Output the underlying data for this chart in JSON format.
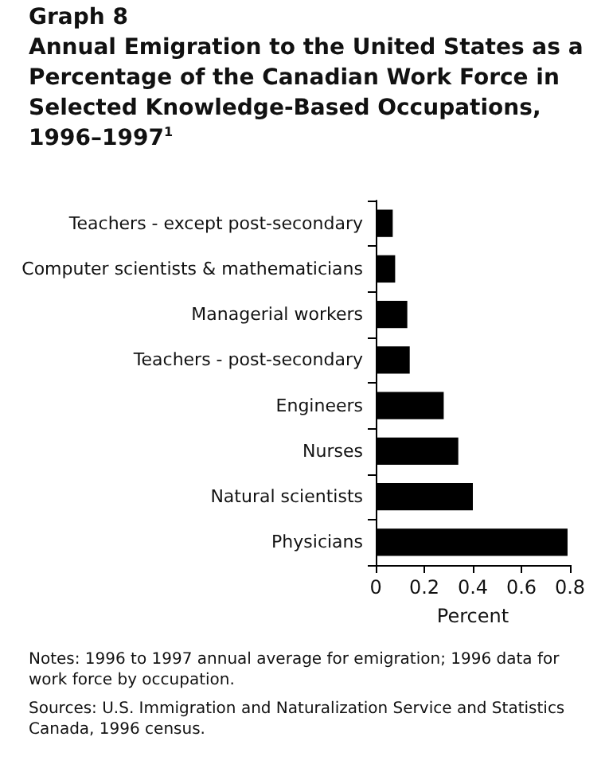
{
  "chart_data": {
    "type": "bar",
    "orientation": "horizontal",
    "title": "Graph 8",
    "subtitle": "Annual Emigration to the United States as a Percentage of the Canadian Work Force in Selected Knowledge-Based Occupations, 1996–1997$^{1}$",
    "categories": [
      "Teachers - except post-secondary",
      "Computer scientists & mathematicians",
      "Managerial workers",
      "Teachers - post-secondary",
      "Engineers",
      "Nurses",
      "Natural scientists",
      "Physicians"
    ],
    "values": [
      0.07,
      0.08,
      0.13,
      0.14,
      0.28,
      0.34,
      0.4,
      0.79
    ],
    "color": "#000000",
    "xlabel": "Percent",
    "xlim": [
      0,
      0.8
    ],
    "xticks": [
      0,
      0.2,
      0.4,
      0.6,
      0.8
    ],
    "grid": false,
    "annotations": [
      "Notes: 1996 to 1997 annual average for emigration; 1996 data for work force by occupation.",
      "Sources: U.S. Immigration and Naturalization Service and Statistics Canada, 1996 census."
    ]
  }
}
